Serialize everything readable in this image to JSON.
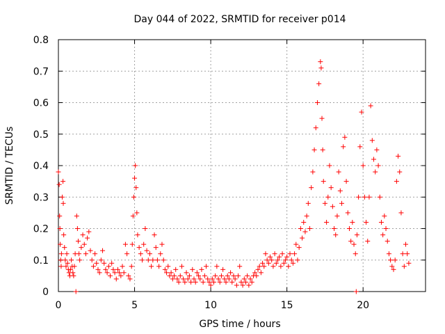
{
  "chart_data": {
    "type": "scatter",
    "title": "Day 044 of 2022, SRMTID for receiver p014",
    "xlabel": "GPS time / hours",
    "ylabel": "SRMTID / TECUs",
    "xlim": [
      0,
      24.1
    ],
    "ylim": [
      0,
      0.8
    ],
    "x_ticks": [
      0,
      5,
      10,
      15,
      20
    ],
    "x_tick_labels": [
      "0",
      "5",
      "10",
      "15",
      "20"
    ],
    "y_ticks": [
      0,
      0.1,
      0.2,
      0.3,
      0.4,
      0.5,
      0.6,
      0.7,
      0.8
    ],
    "y_tick_labels": [
      "0",
      "0.1",
      "0.2",
      "0.3",
      "0.4",
      "0.5",
      "0.6",
      "0.7",
      "0.8"
    ],
    "grid": true,
    "marker": "+",
    "marker_color": "#ff0000",
    "series": [
      {
        "name": "SRMTID",
        "points": [
          [
            0.0,
            0.38
          ],
          [
            0.05,
            0.34
          ],
          [
            0.08,
            0.24
          ],
          [
            0.1,
            0.2
          ],
          [
            0.12,
            0.15
          ],
          [
            0.15,
            0.1
          ],
          [
            0.18,
            0.08
          ],
          [
            0.2,
            0.12
          ],
          [
            0.25,
            0.3
          ],
          [
            0.3,
            0.35
          ],
          [
            0.32,
            0.28
          ],
          [
            0.35,
            0.18
          ],
          [
            0.4,
            0.14
          ],
          [
            0.45,
            0.1
          ],
          [
            0.5,
            0.08
          ],
          [
            0.55,
            0.12
          ],
          [
            0.6,
            0.09
          ],
          [
            0.65,
            0.07
          ],
          [
            0.7,
            0.06
          ],
          [
            0.75,
            0.05
          ],
          [
            0.8,
            0.07
          ],
          [
            0.85,
            0.1
          ],
          [
            0.9,
            0.08
          ],
          [
            0.95,
            0.06
          ],
          [
            1.0,
            0.05
          ],
          [
            1.05,
            0.08
          ],
          [
            1.1,
            0.12
          ],
          [
            1.15,
            0.0
          ],
          [
            1.2,
            0.24
          ],
          [
            1.25,
            0.2
          ],
          [
            1.3,
            0.16
          ],
          [
            1.35,
            0.12
          ],
          [
            1.4,
            0.1
          ],
          [
            1.5,
            0.14
          ],
          [
            1.6,
            0.18
          ],
          [
            1.7,
            0.15
          ],
          [
            1.8,
            0.12
          ],
          [
            1.9,
            0.17
          ],
          [
            2.0,
            0.19
          ],
          [
            2.1,
            0.13
          ],
          [
            2.2,
            0.1
          ],
          [
            2.3,
            0.08
          ],
          [
            2.4,
            0.12
          ],
          [
            2.5,
            0.09
          ],
          [
            2.6,
            0.07
          ],
          [
            2.7,
            0.06
          ],
          [
            2.8,
            0.1
          ],
          [
            2.9,
            0.13
          ],
          [
            3.0,
            0.09
          ],
          [
            3.1,
            0.07
          ],
          [
            3.2,
            0.06
          ],
          [
            3.3,
            0.08
          ],
          [
            3.4,
            0.05
          ],
          [
            3.5,
            0.09
          ],
          [
            3.6,
            0.07
          ],
          [
            3.7,
            0.06
          ],
          [
            3.8,
            0.04
          ],
          [
            3.9,
            0.07
          ],
          [
            4.0,
            0.06
          ],
          [
            4.1,
            0.05
          ],
          [
            4.2,
            0.08
          ],
          [
            4.3,
            0.06
          ],
          [
            4.4,
            0.15
          ],
          [
            4.5,
            0.12
          ],
          [
            4.6,
            0.05
          ],
          [
            4.7,
            0.04
          ],
          [
            4.8,
            0.08
          ],
          [
            4.85,
            0.15
          ],
          [
            4.9,
            0.24
          ],
          [
            4.95,
            0.3
          ],
          [
            5.0,
            0.36
          ],
          [
            5.05,
            0.4
          ],
          [
            5.1,
            0.33
          ],
          [
            5.15,
            0.25
          ],
          [
            5.2,
            0.18
          ],
          [
            5.3,
            0.14
          ],
          [
            5.4,
            0.12
          ],
          [
            5.5,
            0.1
          ],
          [
            5.6,
            0.15
          ],
          [
            5.7,
            0.2
          ],
          [
            5.8,
            0.13
          ],
          [
            5.9,
            0.1
          ],
          [
            6.0,
            0.12
          ],
          [
            6.1,
            0.08
          ],
          [
            6.2,
            0.1
          ],
          [
            6.3,
            0.18
          ],
          [
            6.4,
            0.14
          ],
          [
            6.5,
            0.1
          ],
          [
            6.6,
            0.08
          ],
          [
            6.7,
            0.12
          ],
          [
            6.8,
            0.15
          ],
          [
            6.9,
            0.1
          ],
          [
            7.0,
            0.07
          ],
          [
            7.1,
            0.06
          ],
          [
            7.2,
            0.08
          ],
          [
            7.3,
            0.05
          ],
          [
            7.4,
            0.06
          ],
          [
            7.5,
            0.04
          ],
          [
            7.6,
            0.05
          ],
          [
            7.7,
            0.07
          ],
          [
            7.8,
            0.04
          ],
          [
            7.9,
            0.03
          ],
          [
            8.0,
            0.05
          ],
          [
            8.1,
            0.08
          ],
          [
            8.2,
            0.04
          ],
          [
            8.3,
            0.03
          ],
          [
            8.4,
            0.06
          ],
          [
            8.5,
            0.04
          ],
          [
            8.6,
            0.05
          ],
          [
            8.7,
            0.03
          ],
          [
            8.8,
            0.07
          ],
          [
            8.9,
            0.04
          ],
          [
            9.0,
            0.03
          ],
          [
            9.1,
            0.06
          ],
          [
            9.2,
            0.05
          ],
          [
            9.3,
            0.04
          ],
          [
            9.4,
            0.07
          ],
          [
            9.5,
            0.03
          ],
          [
            9.6,
            0.05
          ],
          [
            9.7,
            0.08
          ],
          [
            9.8,
            0.04
          ],
          [
            9.9,
            0.03
          ],
          [
            10.0,
            0.02
          ],
          [
            10.1,
            0.04
          ],
          [
            10.2,
            0.03
          ],
          [
            10.3,
            0.05
          ],
          [
            10.4,
            0.08
          ],
          [
            10.5,
            0.04
          ],
          [
            10.6,
            0.03
          ],
          [
            10.7,
            0.05
          ],
          [
            10.8,
            0.07
          ],
          [
            10.9,
            0.04
          ],
          [
            11.0,
            0.03
          ],
          [
            11.1,
            0.05
          ],
          [
            11.2,
            0.04
          ],
          [
            11.3,
            0.06
          ],
          [
            11.4,
            0.03
          ],
          [
            11.5,
            0.05
          ],
          [
            11.6,
            0.04
          ],
          [
            11.7,
            0.02
          ],
          [
            11.8,
            0.05
          ],
          [
            11.9,
            0.08
          ],
          [
            12.0,
            0.03
          ],
          [
            12.1,
            0.02
          ],
          [
            12.2,
            0.04
          ],
          [
            12.3,
            0.03
          ],
          [
            12.4,
            0.05
          ],
          [
            12.5,
            0.02
          ],
          [
            12.6,
            0.04
          ],
          [
            12.7,
            0.03
          ],
          [
            12.8,
            0.05
          ],
          [
            12.9,
            0.06
          ],
          [
            13.0,
            0.05
          ],
          [
            13.1,
            0.07
          ],
          [
            13.2,
            0.08
          ],
          [
            13.3,
            0.06
          ],
          [
            13.4,
            0.09
          ],
          [
            13.5,
            0.08
          ],
          [
            13.6,
            0.12
          ],
          [
            13.7,
            0.1
          ],
          [
            13.8,
            0.09
          ],
          [
            13.9,
            0.11
          ],
          [
            14.0,
            0.1
          ],
          [
            14.1,
            0.08
          ],
          [
            14.2,
            0.12
          ],
          [
            14.3,
            0.09
          ],
          [
            14.4,
            0.1
          ],
          [
            14.5,
            0.11
          ],
          [
            14.6,
            0.08
          ],
          [
            14.7,
            0.12
          ],
          [
            14.8,
            0.09
          ],
          [
            14.9,
            0.1
          ],
          [
            15.0,
            0.11
          ],
          [
            15.1,
            0.08
          ],
          [
            15.2,
            0.12
          ],
          [
            15.3,
            0.1
          ],
          [
            15.4,
            0.09
          ],
          [
            15.5,
            0.12
          ],
          [
            15.6,
            0.15
          ],
          [
            15.7,
            0.1
          ],
          [
            15.8,
            0.14
          ],
          [
            15.9,
            0.2
          ],
          [
            16.0,
            0.17
          ],
          [
            16.1,
            0.22
          ],
          [
            16.2,
            0.19
          ],
          [
            16.3,
            0.24
          ],
          [
            16.4,
            0.28
          ],
          [
            16.5,
            0.2
          ],
          [
            16.6,
            0.33
          ],
          [
            16.7,
            0.38
          ],
          [
            16.8,
            0.45
          ],
          [
            16.9,
            0.52
          ],
          [
            17.0,
            0.6
          ],
          [
            17.1,
            0.66
          ],
          [
            17.2,
            0.73
          ],
          [
            17.25,
            0.71
          ],
          [
            17.3,
            0.55
          ],
          [
            17.35,
            0.45
          ],
          [
            17.4,
            0.35
          ],
          [
            17.5,
            0.28
          ],
          [
            17.6,
            0.22
          ],
          [
            17.7,
            0.3
          ],
          [
            17.8,
            0.4
          ],
          [
            17.9,
            0.33
          ],
          [
            18.0,
            0.27
          ],
          [
            18.1,
            0.2
          ],
          [
            18.2,
            0.18
          ],
          [
            18.3,
            0.24
          ],
          [
            18.4,
            0.38
          ],
          [
            18.5,
            0.32
          ],
          [
            18.6,
            0.28
          ],
          [
            18.7,
            0.46
          ],
          [
            18.8,
            0.49
          ],
          [
            18.9,
            0.35
          ],
          [
            19.0,
            0.25
          ],
          [
            19.1,
            0.2
          ],
          [
            19.2,
            0.16
          ],
          [
            19.3,
            0.22
          ],
          [
            19.4,
            0.15
          ],
          [
            19.5,
            0.12
          ],
          [
            19.55,
            0.0
          ],
          [
            19.6,
            0.18
          ],
          [
            19.7,
            0.3
          ],
          [
            19.8,
            0.46
          ],
          [
            19.9,
            0.57
          ],
          [
            20.0,
            0.4
          ],
          [
            20.1,
            0.3
          ],
          [
            20.2,
            0.22
          ],
          [
            20.3,
            0.16
          ],
          [
            20.4,
            0.3
          ],
          [
            20.5,
            0.59
          ],
          [
            20.6,
            0.48
          ],
          [
            20.7,
            0.42
          ],
          [
            20.8,
            0.38
          ],
          [
            20.9,
            0.45
          ],
          [
            21.0,
            0.4
          ],
          [
            21.1,
            0.3
          ],
          [
            21.2,
            0.22
          ],
          [
            21.3,
            0.18
          ],
          [
            21.4,
            0.24
          ],
          [
            21.5,
            0.2
          ],
          [
            21.6,
            0.16
          ],
          [
            21.7,
            0.12
          ],
          [
            21.8,
            0.1
          ],
          [
            21.9,
            0.08
          ],
          [
            22.0,
            0.07
          ],
          [
            22.1,
            0.1
          ],
          [
            22.2,
            0.35
          ],
          [
            22.3,
            0.43
          ],
          [
            22.4,
            0.38
          ],
          [
            22.5,
            0.25
          ],
          [
            22.6,
            0.12
          ],
          [
            22.7,
            0.08
          ],
          [
            22.8,
            0.15
          ],
          [
            22.9,
            0.12
          ],
          [
            23.0,
            0.09
          ]
        ]
      }
    ]
  }
}
